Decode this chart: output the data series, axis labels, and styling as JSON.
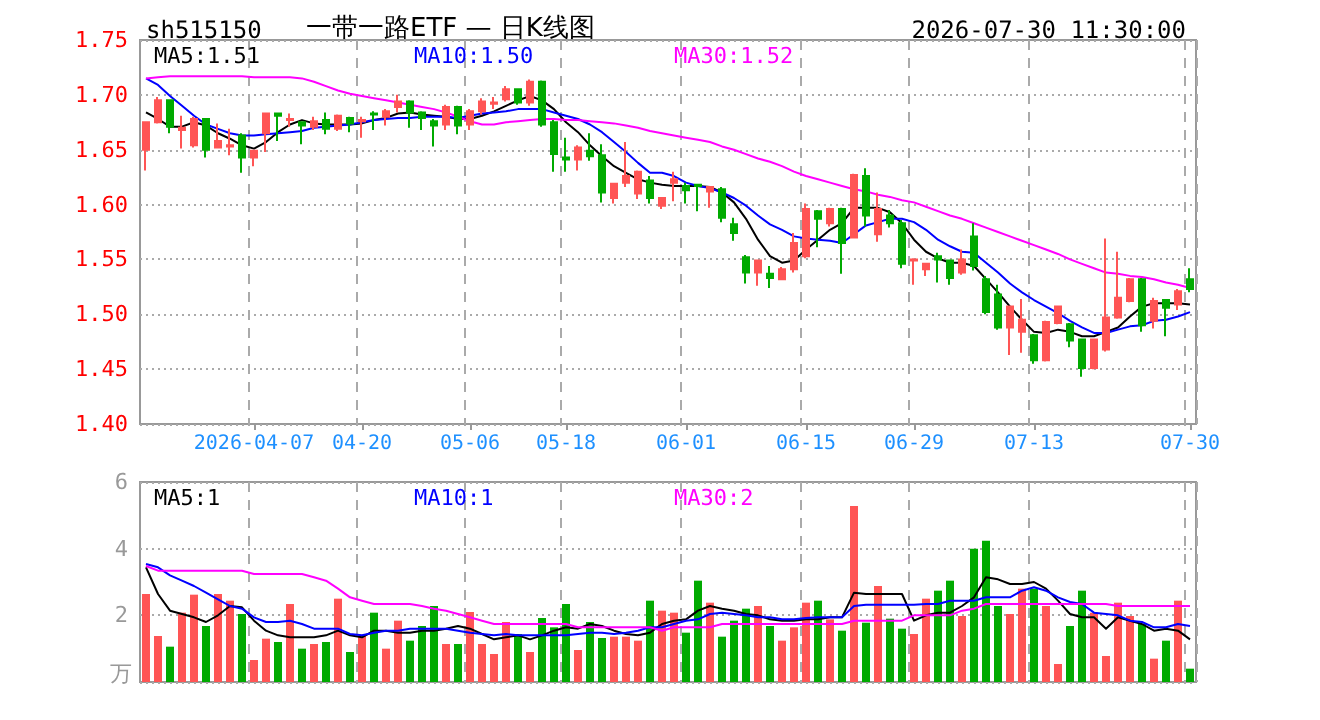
{
  "chart_data": [
    {
      "type": "candlestick",
      "title": "一带一路ETF — 日K线图",
      "subtitle": "sh515150",
      "annotations": [
        "2026-07-30 11:30:00"
      ],
      "categories": [
        null,
        null,
        null,
        null,
        null,
        null,
        null,
        null,
        null,
        "2026-04-07",
        null,
        null,
        null,
        null,
        null,
        null,
        null,
        null,
        "04-20",
        null,
        null,
        null,
        null,
        null,
        null,
        null,
        null,
        "05-06",
        null,
        null,
        null,
        null,
        null,
        null,
        null,
        "05-18",
        null,
        null,
        null,
        null,
        null,
        null,
        null,
        null,
        null,
        "06-01",
        null,
        null,
        null,
        null,
        null,
        null,
        null,
        null,
        null,
        "06-15",
        null,
        null,
        null,
        null,
        null,
        null,
        null,
        null,
        "06-29",
        null,
        null,
        null,
        null,
        null,
        null,
        null,
        null,
        null,
        "07-13",
        null,
        null,
        null,
        null,
        null,
        null,
        null,
        null,
        null,
        null,
        null,
        null,
        "07-30"
      ],
      "ohlc": [
        [
          1.65,
          1.676,
          1.631,
          1.675
        ],
        [
          1.675,
          1.698,
          1.674,
          1.695
        ],
        [
          1.695,
          1.695,
          1.665,
          1.671
        ],
        [
          1.668,
          1.681,
          1.651,
          1.67
        ],
        [
          1.654,
          1.68,
          1.652,
          1.678
        ],
        [
          1.678,
          1.679,
          1.643,
          1.65
        ],
        [
          1.652,
          1.674,
          1.651,
          1.658
        ],
        [
          1.653,
          1.669,
          1.645,
          1.654
        ],
        [
          1.663,
          1.665,
          1.629,
          1.643
        ],
        [
          1.643,
          1.65,
          1.635,
          1.649
        ],
        [
          1.665,
          1.684,
          1.648,
          1.683
        ],
        [
          1.683,
          1.684,
          1.658,
          1.681
        ],
        [
          1.677,
          1.683,
          1.671,
          1.678
        ],
        [
          1.675,
          1.676,
          1.655,
          1.672
        ],
        [
          1.671,
          1.68,
          1.668,
          1.676
        ],
        [
          1.677,
          1.684,
          1.664,
          1.669
        ],
        [
          1.669,
          1.682,
          1.667,
          1.681
        ],
        [
          1.679,
          1.68,
          1.666,
          1.674
        ],
        [
          1.676,
          1.68,
          1.661,
          1.677
        ],
        [
          1.683,
          1.685,
          1.668,
          1.682
        ],
        [
          1.68,
          1.687,
          1.672,
          1.685
        ],
        [
          1.689,
          1.7,
          1.684,
          1.694
        ],
        [
          1.694,
          1.695,
          1.67,
          1.684
        ],
        [
          1.684,
          1.685,
          1.668,
          1.679
        ],
        [
          1.676,
          1.678,
          1.653,
          1.672
        ],
        [
          1.673,
          1.691,
          1.668,
          1.689
        ],
        [
          1.689,
          1.69,
          1.664,
          1.672
        ],
        [
          1.673,
          1.687,
          1.668,
          1.685
        ],
        [
          1.685,
          1.697,
          1.682,
          1.694
        ],
        [
          1.692,
          1.698,
          1.687,
          1.693
        ],
        [
          1.696,
          1.708,
          1.694,
          1.705
        ],
        [
          1.705,
          1.706,
          1.691,
          1.693
        ],
        [
          1.693,
          1.714,
          1.69,
          1.712
        ],
        [
          1.712,
          1.713,
          1.671,
          1.673
        ],
        [
          1.675,
          1.677,
          1.63,
          1.646
        ],
        [
          1.643,
          1.661,
          1.63,
          1.641
        ],
        [
          1.641,
          1.654,
          1.631,
          1.652
        ],
        [
          1.649,
          1.665,
          1.64,
          1.644
        ],
        [
          1.645,
          1.655,
          1.602,
          1.611
        ],
        [
          1.606,
          1.62,
          1.601,
          1.619
        ],
        [
          1.62,
          1.657,
          1.616,
          1.626
        ],
        [
          1.61,
          1.631,
          1.605,
          1.63
        ],
        [
          1.622,
          1.626,
          1.601,
          1.606
        ],
        [
          1.599,
          1.607,
          1.596,
          1.606
        ],
        [
          1.62,
          1.63,
          1.603,
          1.623
        ],
        [
          1.617,
          1.62,
          1.601,
          1.613
        ],
        [
          1.618,
          1.618,
          1.594,
          1.617
        ],
        [
          1.612,
          1.617,
          1.597,
          1.616
        ],
        [
          1.614,
          1.616,
          1.584,
          1.588
        ],
        [
          1.582,
          1.588,
          1.567,
          1.574
        ],
        [
          1.552,
          1.554,
          1.528,
          1.538
        ],
        [
          1.538,
          1.55,
          1.526,
          1.549
        ],
        [
          1.537,
          1.544,
          1.524,
          1.533
        ],
        [
          1.532,
          1.543,
          1.531,
          1.541
        ],
        [
          1.541,
          1.574,
          1.538,
          1.565
        ],
        [
          1.553,
          1.601,
          1.551,
          1.596
        ],
        [
          1.594,
          1.595,
          1.561,
          1.587
        ],
        [
          1.583,
          1.597,
          1.58,
          1.596
        ],
        [
          1.596,
          1.597,
          1.537,
          1.565
        ],
        [
          1.57,
          1.628,
          1.569,
          1.627
        ],
        [
          1.626,
          1.633,
          1.58,
          1.59
        ],
        [
          1.573,
          1.611,
          1.566,
          1.596
        ],
        [
          1.59,
          1.595,
          1.579,
          1.583
        ],
        [
          1.583,
          1.586,
          1.542,
          1.546
        ],
        [
          1.549,
          1.551,
          1.527,
          1.55
        ],
        [
          1.541,
          1.547,
          1.535,
          1.546
        ],
        [
          1.553,
          1.556,
          1.529,
          1.55
        ],
        [
          1.549,
          1.55,
          1.527,
          1.533
        ],
        [
          1.538,
          1.559,
          1.536,
          1.55
        ],
        [
          1.571,
          1.583,
          1.54,
          1.544
        ],
        [
          1.532,
          1.535,
          1.5,
          1.502
        ],
        [
          1.518,
          1.527,
          1.486,
          1.488
        ],
        [
          1.488,
          1.508,
          1.463,
          1.507
        ],
        [
          1.484,
          1.514,
          1.465,
          1.495
        ],
        [
          1.481,
          1.482,
          1.455,
          1.458
        ],
        [
          1.458,
          1.494,
          1.457,
          1.493
        ],
        [
          1.492,
          1.508,
          1.491,
          1.507
        ],
        [
          1.491,
          1.492,
          1.47,
          1.476
        ],
        [
          1.477,
          1.478,
          1.443,
          1.451
        ],
        [
          1.451,
          1.478,
          1.45,
          1.477
        ],
        [
          1.468,
          1.569,
          1.466,
          1.497
        ],
        [
          1.497,
          1.557,
          1.496,
          1.515
        ],
        [
          1.512,
          1.533,
          1.511,
          1.532
        ],
        [
          1.532,
          1.533,
          1.484,
          1.49
        ],
        [
          1.494,
          1.515,
          1.487,
          1.512
        ],
        [
          1.513,
          1.514,
          1.48,
          1.506
        ],
        [
          1.509,
          1.523,
          1.504,
          1.521
        ],
        [
          1.532,
          1.542,
          1.52,
          1.523
        ]
      ],
      "colors": [
        "#ff5555",
        "#ff5555",
        "#00aa00",
        "#ff5555",
        "#ff5555",
        "#00aa00",
        "#ff5555",
        "#ff5555",
        "#00aa00",
        "#ff5555",
        "#ff5555",
        "#00aa00",
        "#ff5555",
        "#00aa00",
        "#ff5555",
        "#00aa00",
        "#ff5555",
        "#00aa00",
        "#ff5555",
        "#00aa00",
        "#ff5555",
        "#ff5555",
        "#00aa00",
        "#00aa00",
        "#00aa00",
        "#ff5555",
        "#00aa00",
        "#ff5555",
        "#ff5555",
        "#ff5555",
        "#ff5555",
        "#00aa00",
        "#ff5555",
        "#00aa00",
        "#00aa00",
        "#00aa00",
        "#ff5555",
        "#00aa00",
        "#00aa00",
        "#ff5555",
        "#ff5555",
        "#ff5555",
        "#00aa00",
        "#ff5555",
        "#ff5555",
        "#00aa00",
        "#00aa00",
        "#ff5555",
        "#00aa00",
        "#00aa00",
        "#00aa00",
        "#ff5555",
        "#00aa00",
        "#ff5555",
        "#ff5555",
        "#ff5555",
        "#00aa00",
        "#ff5555",
        "#00aa00",
        "#ff5555",
        "#00aa00",
        "#ff5555",
        "#00aa00",
        "#00aa00",
        "#ff5555",
        "#ff5555",
        "#00aa00",
        "#00aa00",
        "#ff5555",
        "#00aa00",
        "#00aa00",
        "#00aa00",
        "#ff5555",
        "#ff5555",
        "#00aa00",
        "#ff5555",
        "#ff5555",
        "#00aa00",
        "#00aa00",
        "#ff5555",
        "#ff5555",
        "#ff5555",
        "#ff5555",
        "#00aa00",
        "#ff5555",
        "#00aa00",
        "#ff5555",
        "#00aa00"
      ],
      "series": [
        {
          "type": "line",
          "name": "MA5:1.51",
          "color": "#000000",
          "values": [
            1.684,
            1.678,
            1.671,
            1.671,
            1.675,
            1.672,
            1.665,
            1.66,
            1.654,
            1.651,
            1.657,
            1.666,
            1.673,
            1.677,
            1.674,
            1.673,
            1.673,
            1.673,
            1.674,
            1.677,
            1.679,
            1.683,
            1.684,
            1.682,
            1.681,
            1.68,
            1.678,
            1.678,
            1.681,
            1.685,
            1.69,
            1.695,
            1.699,
            1.695,
            1.687,
            1.675,
            1.666,
            1.654,
            1.644,
            1.635,
            1.629,
            1.623,
            1.62,
            1.618,
            1.617,
            1.617,
            1.617,
            1.616,
            1.611,
            1.602,
            1.587,
            1.568,
            1.553,
            1.547,
            1.549,
            1.559,
            1.568,
            1.577,
            1.583,
            1.597,
            1.597,
            1.597,
            1.593,
            1.583,
            1.568,
            1.557,
            1.551,
            1.547,
            1.547,
            1.544,
            1.532,
            1.52,
            1.507,
            1.495,
            1.484,
            1.483,
            1.486,
            1.484,
            1.48,
            1.48,
            1.484,
            1.488,
            1.498,
            1.507,
            1.51,
            1.51,
            1.51,
            1.509
          ]
        },
        {
          "type": "line",
          "name": "MA10:1.50",
          "color": "#0000ff",
          "values": [
            1.715,
            1.709,
            1.699,
            1.69,
            1.681,
            1.673,
            1.669,
            1.665,
            1.663,
            1.663,
            1.664,
            1.665,
            1.666,
            1.667,
            1.67,
            1.671,
            1.672,
            1.673,
            1.675,
            1.677,
            1.678,
            1.679,
            1.679,
            1.68,
            1.68,
            1.68,
            1.679,
            1.681,
            1.683,
            1.684,
            1.685,
            1.687,
            1.687,
            1.687,
            1.684,
            1.681,
            1.678,
            1.673,
            1.666,
            1.657,
            1.648,
            1.638,
            1.629,
            1.629,
            1.626,
            1.62,
            1.617,
            1.615,
            1.611,
            1.606,
            1.599,
            1.59,
            1.582,
            1.577,
            1.571,
            1.569,
            1.568,
            1.567,
            1.565,
            1.573,
            1.581,
            1.584,
            1.587,
            1.587,
            1.584,
            1.577,
            1.568,
            1.562,
            1.557,
            1.556,
            1.547,
            1.538,
            1.528,
            1.52,
            1.513,
            1.507,
            1.501,
            1.494,
            1.488,
            1.483,
            1.483,
            1.486,
            1.489,
            1.49,
            1.494,
            1.495,
            1.498,
            1.502
          ]
        },
        {
          "type": "line",
          "name": "MA30:1.52",
          "color": "#ff00ff",
          "values": [
            1.715,
            1.716,
            1.717,
            1.717,
            1.717,
            1.717,
            1.717,
            1.717,
            1.717,
            1.716,
            1.716,
            1.716,
            1.716,
            1.715,
            1.712,
            1.708,
            1.704,
            1.701,
            1.699,
            1.697,
            1.695,
            1.693,
            1.691,
            1.689,
            1.687,
            1.684,
            1.68,
            1.676,
            1.673,
            1.673,
            1.675,
            1.676,
            1.677,
            1.678,
            1.678,
            1.677,
            1.677,
            1.676,
            1.675,
            1.674,
            1.672,
            1.67,
            1.667,
            1.665,
            1.663,
            1.661,
            1.659,
            1.657,
            1.653,
            1.65,
            1.646,
            1.642,
            1.639,
            1.635,
            1.63,
            1.626,
            1.623,
            1.62,
            1.617,
            1.614,
            1.612,
            1.609,
            1.607,
            1.604,
            1.602,
            1.598,
            1.594,
            1.59,
            1.587,
            1.583,
            1.579,
            1.575,
            1.571,
            1.567,
            1.563,
            1.559,
            1.555,
            1.55,
            1.546,
            1.542,
            1.538,
            1.537,
            1.535,
            1.534,
            1.532,
            1.529,
            1.527,
            1.524
          ]
        }
      ],
      "ylim": [
        1.4,
        1.75
      ],
      "yticks": [
        {
          "value": 1.4,
          "label": "1.40"
        },
        {
          "value": 1.45,
          "label": "1.45"
        },
        {
          "value": 1.5,
          "label": "1.50"
        },
        {
          "value": 1.55,
          "label": "1.55"
        },
        {
          "value": 1.6,
          "label": "1.60"
        },
        {
          "value": 1.65,
          "label": "1.65"
        },
        {
          "value": 1.7,
          "label": "1.70"
        },
        {
          "value": 1.75,
          "label": "1.75"
        }
      ],
      "grid": true,
      "legend": "top",
      "marker": "none"
    },
    {
      "type": "bar",
      "ylabel": "万",
      "tick_labels": "y",
      "categories": [
        null,
        null,
        null,
        null,
        null,
        null,
        null,
        null,
        null,
        null,
        null,
        null,
        null,
        null,
        null,
        null,
        null,
        null,
        null,
        null,
        null,
        null,
        null,
        null,
        null,
        null,
        null,
        null,
        null,
        null,
        null,
        null,
        null,
        null,
        null,
        null,
        null,
        null,
        null,
        null,
        null,
        null,
        null,
        null,
        null,
        null,
        null,
        null,
        null,
        null,
        null,
        null,
        null,
        null,
        null,
        null,
        null,
        null,
        null,
        null,
        null,
        null,
        null,
        null,
        null,
        null,
        null,
        null,
        null,
        null,
        null,
        null,
        null,
        null,
        null,
        null,
        null,
        null,
        null,
        null,
        null,
        null,
        null,
        null,
        null,
        null,
        null,
        null
      ],
      "series": [
        {
          "type": "bar",
          "values": [
            2.64,
            1.38,
            1.06,
            2.08,
            2.62,
            1.68,
            2.64,
            2.44,
            2.04,
            0.66,
            1.3,
            1.2,
            2.34,
            1.0,
            1.14,
            1.2,
            2.5,
            0.9,
            1.38,
            2.08,
            1.0,
            1.84,
            1.24,
            1.68,
            2.28,
            1.14,
            1.14,
            2.1,
            1.14,
            0.84,
            1.8,
            1.44,
            0.9,
            1.92,
            1.64,
            2.34,
            0.96,
            1.8,
            1.32,
            1.36,
            1.36,
            1.24,
            2.44,
            2.14,
            2.08,
            1.48,
            3.04,
            2.38,
            1.36,
            1.84,
            2.2,
            2.28,
            1.68,
            1.24,
            1.64,
            2.38,
            2.44,
            1.88,
            1.54,
            5.28,
            1.78,
            2.88,
            1.9,
            1.6,
            1.44,
            2.5,
            2.74,
            3.04,
            1.98,
            4.0,
            4.24,
            2.28,
            2.04,
            2.8,
            2.8,
            2.28,
            0.54,
            1.68,
            2.74,
            2.08,
            0.78,
            2.38,
            1.98,
            1.74,
            0.7,
            1.24,
            2.44,
            0.4
          ],
          "colors": [
            "#ff5555",
            "#ff5555",
            "#00aa00",
            "#ff5555",
            "#ff5555",
            "#00aa00",
            "#ff5555",
            "#ff5555",
            "#00aa00",
            "#ff5555",
            "#ff5555",
            "#00aa00",
            "#ff5555",
            "#00aa00",
            "#ff5555",
            "#00aa00",
            "#ff5555",
            "#00aa00",
            "#ff5555",
            "#00aa00",
            "#ff5555",
            "#ff5555",
            "#00aa00",
            "#00aa00",
            "#00aa00",
            "#ff5555",
            "#00aa00",
            "#ff5555",
            "#ff5555",
            "#ff5555",
            "#ff5555",
            "#00aa00",
            "#ff5555",
            "#00aa00",
            "#00aa00",
            "#00aa00",
            "#ff5555",
            "#00aa00",
            "#00aa00",
            "#ff5555",
            "#ff5555",
            "#ff5555",
            "#00aa00",
            "#ff5555",
            "#ff5555",
            "#00aa00",
            "#00aa00",
            "#ff5555",
            "#00aa00",
            "#00aa00",
            "#00aa00",
            "#ff5555",
            "#00aa00",
            "#ff5555",
            "#ff5555",
            "#ff5555",
            "#00aa00",
            "#ff5555",
            "#00aa00",
            "#ff5555",
            "#00aa00",
            "#ff5555",
            "#00aa00",
            "#00aa00",
            "#ff5555",
            "#ff5555",
            "#00aa00",
            "#00aa00",
            "#ff5555",
            "#00aa00",
            "#00aa00",
            "#00aa00",
            "#ff5555",
            "#ff5555",
            "#00aa00",
            "#ff5555",
            "#ff5555",
            "#00aa00",
            "#00aa00",
            "#ff5555",
            "#ff5555",
            "#ff5555",
            "#ff5555",
            "#00aa00",
            "#ff5555",
            "#00aa00",
            "#ff5555",
            "#00aa00"
          ]
        },
        {
          "type": "line",
          "name": "MA5:1",
          "color": "#000000",
          "values": [
            3.44,
            2.64,
            2.14,
            2.04,
            1.94,
            1.8,
            2.0,
            2.28,
            2.24,
            1.84,
            1.54,
            1.4,
            1.34,
            1.34,
            1.34,
            1.4,
            1.54,
            1.4,
            1.34,
            1.54,
            1.54,
            1.48,
            1.48,
            1.54,
            1.54,
            1.6,
            1.68,
            1.6,
            1.44,
            1.28,
            1.34,
            1.4,
            1.28,
            1.4,
            1.54,
            1.64,
            1.6,
            1.74,
            1.68,
            1.54,
            1.44,
            1.4,
            1.48,
            1.74,
            1.84,
            1.88,
            2.14,
            2.28,
            2.2,
            2.14,
            2.04,
            2.0,
            1.88,
            1.84,
            1.84,
            1.88,
            1.88,
            1.94,
            1.94,
            2.68,
            2.64,
            2.64,
            2.64,
            2.64,
            1.84,
            2.0,
            2.08,
            2.08,
            2.28,
            2.54,
            3.14,
            3.08,
            2.94,
            2.94,
            3.0,
            2.8,
            2.44,
            2.04,
            1.94,
            1.94,
            1.6,
            1.94,
            1.84,
            1.74,
            1.54,
            1.6,
            1.54,
            1.28
          ]
        },
        {
          "type": "line",
          "name": "MA10:1",
          "color": "#0000ff",
          "values": [
            3.54,
            3.44,
            3.2,
            3.04,
            2.88,
            2.68,
            2.48,
            2.28,
            2.2,
            1.94,
            1.8,
            1.8,
            1.84,
            1.74,
            1.6,
            1.6,
            1.6,
            1.44,
            1.4,
            1.48,
            1.54,
            1.54,
            1.6,
            1.6,
            1.6,
            1.6,
            1.54,
            1.48,
            1.44,
            1.4,
            1.44,
            1.4,
            1.4,
            1.4,
            1.4,
            1.4,
            1.44,
            1.48,
            1.48,
            1.44,
            1.48,
            1.54,
            1.64,
            1.64,
            1.74,
            1.84,
            1.88,
            2.04,
            2.08,
            2.04,
            2.0,
            1.94,
            1.94,
            1.88,
            1.88,
            1.92,
            1.94,
            1.94,
            1.94,
            2.28,
            2.32,
            2.32,
            2.32,
            2.32,
            2.32,
            2.34,
            2.34,
            2.44,
            2.44,
            2.44,
            2.54,
            2.54,
            2.54,
            2.74,
            2.84,
            2.74,
            2.54,
            2.4,
            2.34,
            2.08,
            2.04,
            2.0,
            1.84,
            1.8,
            1.64,
            1.64,
            1.74,
            1.68
          ]
        },
        {
          "type": "line",
          "name": "MA30:2",
          "color": "#ff00ff",
          "values": [
            3.48,
            3.34,
            3.34,
            3.34,
            3.34,
            3.34,
            3.34,
            3.34,
            3.34,
            3.24,
            3.24,
            3.24,
            3.24,
            3.24,
            3.14,
            3.04,
            2.8,
            2.54,
            2.44,
            2.34,
            2.34,
            2.34,
            2.34,
            2.28,
            2.2,
            2.14,
            2.04,
            1.94,
            1.84,
            1.74,
            1.74,
            1.74,
            1.74,
            1.74,
            1.74,
            1.74,
            1.64,
            1.64,
            1.64,
            1.64,
            1.64,
            1.64,
            1.64,
            1.54,
            1.64,
            1.64,
            1.64,
            1.64,
            1.74,
            1.74,
            1.74,
            1.74,
            1.74,
            1.74,
            1.74,
            1.74,
            1.74,
            1.74,
            1.74,
            1.84,
            1.84,
            1.84,
            1.84,
            1.84,
            2.0,
            2.0,
            2.0,
            2.0,
            2.14,
            2.2,
            2.34,
            2.34,
            2.34,
            2.34,
            2.34,
            2.34,
            2.34,
            2.34,
            2.34,
            2.34,
            2.34,
            2.28,
            2.28,
            2.28,
            2.28,
            2.28,
            2.28,
            2.28
          ]
        }
      ],
      "ylim": [
        0,
        6
      ],
      "yticks": [
        2,
        4,
        6
      ],
      "grid": true,
      "legend": "top",
      "marker": "none"
    }
  ]
}
